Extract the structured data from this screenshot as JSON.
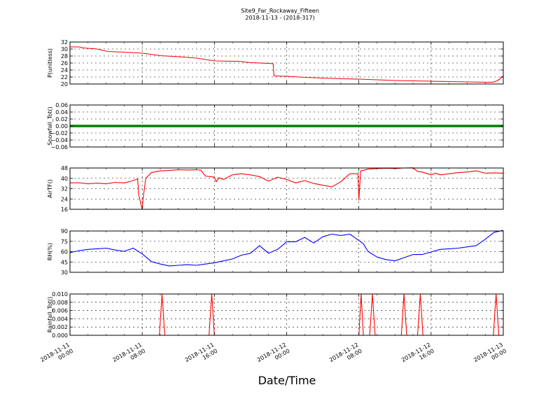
{
  "figure": {
    "title_line1": "Site9_Far_Rockaway_Fifteen",
    "title_line2": "2018-11-13 - (2018-317)",
    "xlabel": "Date/Time"
  },
  "x_ticks": [
    {
      "t": 0,
      "line1": "2018-11-11",
      "line2": "00:00"
    },
    {
      "t": 8,
      "line1": "2018-11-11",
      "line2": "08:00"
    },
    {
      "t": 16,
      "line1": "2018-11-11",
      "line2": "16:00"
    },
    {
      "t": 24,
      "line1": "2018-11-12",
      "line2": "00:00"
    },
    {
      "t": 32,
      "line1": "2018-11-12",
      "line2": "08:00"
    },
    {
      "t": 40,
      "line1": "2018-11-12",
      "line2": "16:00"
    },
    {
      "t": 48,
      "line1": "2018-11-13",
      "line2": "00:00"
    }
  ],
  "chart_data": [
    {
      "type": "line",
      "ylabel": "P(unitless)",
      "ylim": [
        20,
        32
      ],
      "yticks": [
        "20",
        "22",
        "24",
        "26",
        "28",
        "30",
        "32"
      ],
      "grid": true,
      "series": [
        {
          "color": "#ff0000",
          "x": [
            0,
            1,
            1.5,
            2,
            3,
            3.8,
            4.2,
            5,
            6,
            8,
            10,
            12,
            14,
            16,
            18,
            18.6,
            20,
            22,
            22.5,
            22.6,
            24,
            26,
            28,
            30,
            32,
            34,
            36,
            38,
            40,
            42,
            44,
            46,
            46.8,
            47.3,
            47.7,
            48
          ],
          "y": [
            30.6,
            30.6,
            30.3,
            30.2,
            30.0,
            29.5,
            29.3,
            29.2,
            29.1,
            28.8,
            28.1,
            27.8,
            27.4,
            26.6,
            26.5,
            26.5,
            26.1,
            25.9,
            25.8,
            22.3,
            22.2,
            21.9,
            21.7,
            21.5,
            21.4,
            21.2,
            21.0,
            20.9,
            20.8,
            20.7,
            20.6,
            20.5,
            20.5,
            20.9,
            21.6,
            22.3
          ]
        }
      ]
    },
    {
      "type": "line",
      "ylabel": "Snowfall_Tot()",
      "ylim": [
        -0.06,
        0.06
      ],
      "yticks": [
        "−0.06",
        "−0.04",
        "−0.02",
        "0.00",
        "0.02",
        "0.04",
        "0.06"
      ],
      "grid": true,
      "series": [
        {
          "color": "#008000",
          "x": [
            0,
            48
          ],
          "y": [
            0,
            0
          ]
        }
      ]
    },
    {
      "type": "line",
      "ylabel": "AirTF()",
      "ylim": [
        12,
        48
      ],
      "yticks": [
        "16",
        "24",
        "32",
        "40",
        "48"
      ],
      "grid": true,
      "series": [
        {
          "color": "#ff0000",
          "x": [
            0,
            1,
            2,
            3,
            4,
            5,
            6,
            7,
            7.5,
            7.6,
            8,
            8.1,
            8.4,
            9,
            10,
            11,
            12,
            13,
            14,
            14.5,
            15,
            16,
            16.2,
            16.5,
            17,
            18,
            19,
            20,
            21,
            22,
            23,
            24,
            25,
            26,
            27,
            28,
            29,
            30,
            31,
            31.5,
            31.9,
            32,
            32.2,
            32.5,
            33,
            34,
            35,
            36,
            37,
            38,
            38.5,
            39,
            40,
            40.5,
            41,
            42,
            43,
            44,
            45,
            46,
            47,
            48
          ],
          "y": [
            35,
            35.2,
            34.2,
            34.8,
            34.2,
            35.5,
            35,
            37,
            38.5,
            25,
            12,
            22,
            39,
            44,
            45.5,
            45.8,
            46.5,
            46.2,
            46.5,
            46,
            41,
            40,
            36,
            39.5,
            38,
            42,
            43,
            42,
            40.5,
            36.5,
            40,
            38,
            35,
            37,
            34.5,
            33,
            31.5,
            36,
            43,
            43,
            43,
            20,
            45.5,
            46,
            47,
            47.5,
            47.8,
            47.5,
            48,
            48.2,
            45,
            44.5,
            42,
            43.5,
            42,
            43,
            44,
            44.5,
            45.5,
            43.5,
            43.8,
            43.5
          ]
        }
      ]
    },
    {
      "type": "line",
      "ylabel": "RH(%)",
      "ylim": [
        30,
        95
      ],
      "yticks": [
        "30",
        "45",
        "60",
        "75",
        "90"
      ],
      "grid": true,
      "series": [
        {
          "color": "#0000ff",
          "x": [
            0,
            1,
            2,
            3,
            4,
            5,
            6,
            7,
            8,
            9,
            10,
            11,
            12,
            13,
            14,
            15,
            16,
            17,
            18,
            19,
            20,
            21,
            22,
            23,
            24,
            25,
            26,
            27,
            28,
            29,
            30,
            31,
            32,
            32.5,
            33,
            34,
            35,
            36,
            37,
            38,
            39,
            40,
            41,
            42,
            43,
            44,
            45,
            46,
            47,
            48
          ],
          "y": [
            61,
            64,
            66,
            67,
            68,
            65,
            63,
            68,
            59,
            47,
            43,
            40,
            41,
            42,
            41,
            43,
            45,
            48,
            51,
            57,
            60,
            72,
            60,
            66,
            78,
            78,
            85,
            76,
            86,
            90,
            88,
            90,
            80,
            75,
            63,
            54,
            50,
            48,
            53,
            58,
            58,
            62,
            66,
            67,
            68,
            70,
            72,
            82,
            93,
            96
          ]
        }
      ]
    },
    {
      "type": "line",
      "ylabel": "Rainfall_Tot()",
      "ylim": [
        0,
        0.01
      ],
      "yticks": [
        "0.000",
        "0.002",
        "0.004",
        "0.006",
        "0.008",
        "0.010"
      ],
      "grid": true,
      "series": [
        {
          "color": "#ff0000",
          "x": [
            0,
            9.9,
            10.2,
            10.5,
            15.4,
            15.7,
            16.0,
            32.0,
            32.25,
            32.5,
            33.2,
            33.5,
            33.8,
            36.7,
            37.0,
            37.3,
            38.5,
            38.8,
            39.1,
            46.9,
            47.2,
            47.5,
            48
          ],
          "y": [
            0,
            0,
            0.01,
            0,
            0,
            0.01,
            0,
            0,
            0.01,
            0,
            0,
            0.01,
            0,
            0,
            0.01,
            0,
            0,
            0.01,
            0,
            0,
            0.01,
            0,
            0
          ]
        }
      ]
    }
  ]
}
